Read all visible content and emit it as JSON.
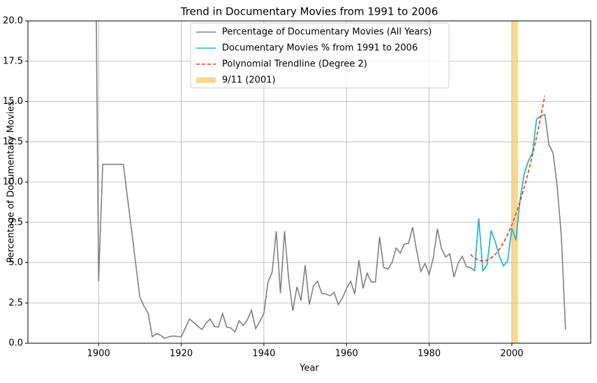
{
  "chart_data": {
    "type": "line",
    "title": "Trend in Documentary Movies from 1991 to 2006",
    "x_label": "Year",
    "y_label": "Percentage of Documentary Movies",
    "xlim": [
      1882.9,
      2019.1
    ],
    "ylim": [
      0,
      20
    ],
    "xticks": [
      1900,
      1920,
      1940,
      1960,
      1980,
      2000
    ],
    "yticks": [
      {
        "value": 0,
        "label": "0.0"
      },
      2.5,
      {
        "value": 5,
        "label": "5.0"
      },
      7.5,
      {
        "value": 10,
        "label": "10.0"
      },
      12.5,
      {
        "value": 15,
        "label": "15.0"
      },
      17.5,
      {
        "value": 20,
        "label": "20.0"
      }
    ],
    "grid": true,
    "legend": "upper center",
    "series": [
      {
        "name": "Percentage of Documentary Movies (All Years)",
        "color": "#808080",
        "style": "solid",
        "x": [
          1899,
          1900,
          1901,
          1902,
          1903,
          1904,
          1905,
          1906,
          1907,
          1908,
          1909,
          1910,
          1911,
          1912,
          1913,
          1914,
          1915,
          1916,
          1917,
          1918,
          1919,
          1920,
          1921,
          1922,
          1923,
          1924,
          1925,
          1926,
          1927,
          1928,
          1929,
          1930,
          1931,
          1932,
          1933,
          1934,
          1935,
          1936,
          1937,
          1938,
          1939,
          1940,
          1941,
          1942,
          1943,
          1944,
          1945,
          1946,
          1947,
          1948,
          1949,
          1950,
          1951,
          1952,
          1953,
          1954,
          1955,
          1956,
          1957,
          1958,
          1959,
          1960,
          1961,
          1962,
          1963,
          1964,
          1965,
          1966,
          1967,
          1968,
          1969,
          1970,
          1971,
          1972,
          1973,
          1974,
          1975,
          1976,
          1977,
          1978,
          1979,
          1980,
          1981,
          1982,
          1983,
          1984,
          1985,
          1986,
          1987,
          1988,
          1989,
          1990,
          1991,
          1992,
          1993,
          1994,
          1995,
          1996,
          1997,
          1998,
          1999,
          2000,
          2001,
          2002,
          2003,
          2004,
          2005,
          2006,
          2007,
          2008,
          2009,
          2010,
          2011,
          2012,
          2013
        ],
        "values": [
          33.3,
          3.85,
          11.1,
          11.1,
          11.1,
          11.1,
          11.1,
          11.1,
          9.0,
          7.0,
          4.9,
          2.85,
          2.3,
          1.85,
          0.4,
          0.6,
          0.5,
          0.3,
          0.4,
          0.45,
          0.42,
          0.4,
          0.95,
          1.5,
          1.3,
          1.05,
          0.85,
          1.25,
          1.5,
          1.05,
          1.0,
          1.85,
          1.0,
          0.95,
          0.7,
          1.4,
          1.1,
          1.45,
          2.05,
          0.9,
          1.35,
          1.85,
          3.8,
          4.4,
          6.95,
          3.1,
          6.95,
          4.0,
          2.0,
          3.5,
          2.65,
          4.85,
          2.4,
          3.55,
          3.85,
          3.1,
          3.05,
          2.95,
          3.15,
          2.4,
          2.8,
          3.4,
          3.85,
          3.05,
          5.15,
          3.4,
          4.35,
          3.8,
          3.8,
          6.6,
          4.7,
          4.6,
          5.0,
          5.9,
          5.6,
          6.15,
          6.2,
          7.2,
          5.7,
          4.45,
          4.95,
          4.25,
          5.3,
          7.1,
          5.85,
          5.35,
          5.55,
          4.1,
          4.95,
          5.4,
          4.75,
          4.7,
          4.5,
          7.75,
          4.5,
          4.85,
          7.0,
          6.3,
          5.4,
          4.8,
          5.1,
          7.15,
          6.4,
          8.9,
          10.5,
          11.3,
          11.8,
          13.9,
          14.1,
          14.2,
          12.3,
          11.8,
          9.7,
          6.6,
          0.85
        ]
      },
      {
        "name": "Documentary Movies % from 1991 to 2006",
        "color": "#17becf",
        "style": "solid",
        "x": [
          1991,
          1992,
          1993,
          1994,
          1995,
          1996,
          1997,
          1998,
          1999,
          2000,
          2001,
          2002,
          2003,
          2004,
          2005,
          2006,
          2007,
          2008
        ],
        "values": [
          4.5,
          7.75,
          4.5,
          4.85,
          7.0,
          6.3,
          5.4,
          4.8,
          5.1,
          7.15,
          6.4,
          8.9,
          10.5,
          11.3,
          11.8,
          13.9,
          14.1,
          14.2
        ]
      },
      {
        "name": "Polynomial Trendline (Degree 2)",
        "color": "#ee3311",
        "style": "dashed",
        "x": [
          1990,
          1991,
          1992,
          1993,
          1994,
          1995,
          1996,
          1997,
          1998,
          1999,
          2000,
          2001,
          2002,
          2003,
          2004,
          2005,
          2006,
          2007,
          2008
        ],
        "values": [
          5.51,
          5.28,
          5.15,
          5.1,
          5.15,
          5.28,
          5.51,
          5.83,
          6.24,
          6.74,
          7.33,
          8.02,
          8.79,
          9.66,
          10.62,
          11.67,
          12.82,
          14.04,
          15.36
        ]
      }
    ],
    "spans": [
      {
        "name": "9/11 (2001)",
        "color": "#f5c96a",
        "range": [
          2000,
          2001.5
        ]
      }
    ]
  }
}
